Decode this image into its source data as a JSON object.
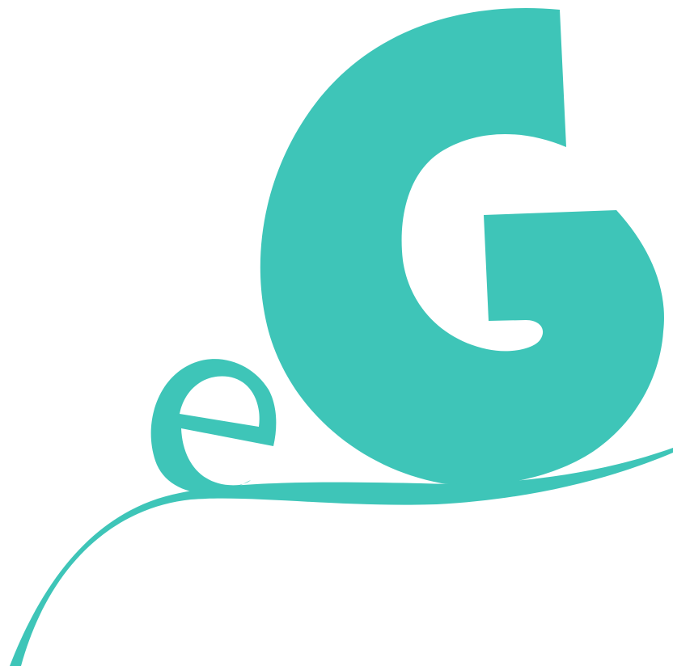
{
  "logo": {
    "lettering": "eG",
    "color": "#3EC5B8",
    "background": "#FFFFFF"
  }
}
